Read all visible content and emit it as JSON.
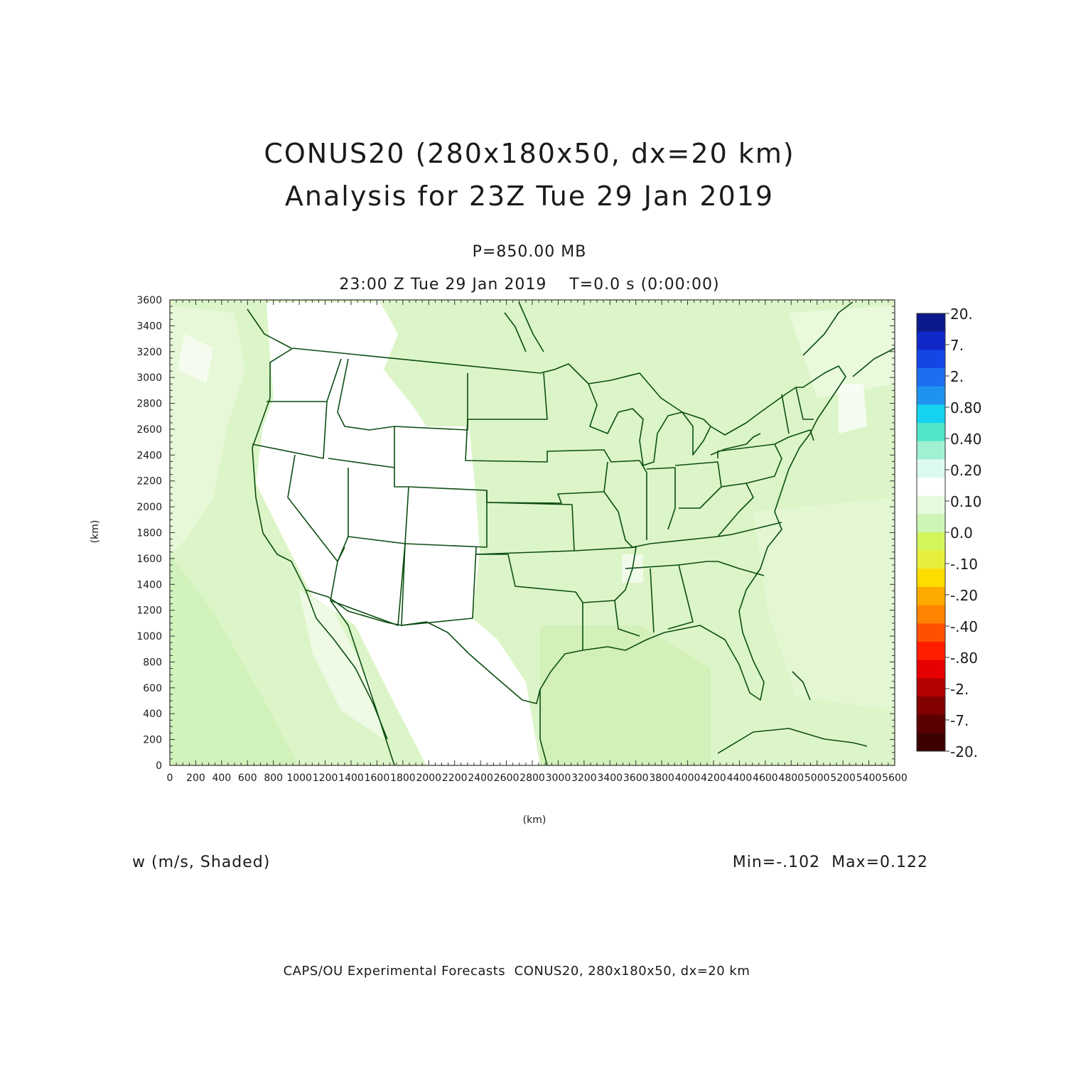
{
  "title": {
    "line1": "CONUS20 (280x180x50, dx=20 km)",
    "line2": "Analysis for 23Z Tue 29 Jan 2019"
  },
  "subtitle": {
    "level": "P=850.00 MB",
    "time": "23:00 Z Tue 29 Jan 2019    T=0.0 s (0:00:00)"
  },
  "axes": {
    "xlabel": "(km)",
    "ylabel": "(km)",
    "xlim": [
      0,
      5600
    ],
    "ylim": [
      0,
      3600
    ],
    "xticks": [
      "0",
      "200",
      "400",
      "600",
      "800",
      "1000",
      "1200",
      "1400",
      "1600",
      "1800",
      "2000",
      "2200",
      "2400",
      "2600",
      "2800",
      "3000",
      "3200",
      "3400",
      "3600",
      "3800",
      "4000",
      "4200",
      "4400",
      "4600",
      "4800",
      "5000",
      "5200",
      "5400",
      "5600"
    ],
    "yticks": [
      "0",
      "200",
      "400",
      "600",
      "800",
      "1000",
      "1200",
      "1400",
      "1600",
      "1800",
      "2000",
      "2200",
      "2400",
      "2600",
      "2800",
      "3000",
      "3200",
      "3400",
      "3600"
    ]
  },
  "colorbar": {
    "labels": [
      "20.",
      "7.",
      "2.",
      "0.80",
      "0.40",
      "0.20",
      "0.10",
      "0.0",
      "-.10",
      "-.20",
      "-.40",
      "-.80",
      "-2.",
      "-7.",
      "-20."
    ],
    "colors": [
      "#0a1a8c",
      "#1028c8",
      "#1446e6",
      "#1e6ef0",
      "#1e94f0",
      "#14d2f0",
      "#50e6c8",
      "#a0f0d2",
      "#dcfaf0",
      "#ffffff",
      "#e6fae0",
      "#cdf5b4",
      "#d2f55a",
      "#e6f03c",
      "#ffdc00",
      "#ffaa00",
      "#ff8200",
      "#ff5000",
      "#ff1e00",
      "#e60000",
      "#b40000",
      "#820000",
      "#5a0000",
      "#3c0000"
    ]
  },
  "variable_label": "w (m/s, Shaded)",
  "minmax": "Min=-.102  Max=0.122",
  "footer": "CAPS/OU Experimental Forecasts  CONUS20, 280x180x50, dx=20 km",
  "map": {
    "field_background": "#dcf5c8",
    "field_light": "#eefae4",
    "field_dark": "#cdf0b4",
    "near_zero": "#ffffff",
    "border_color": "#0b4d12"
  }
}
